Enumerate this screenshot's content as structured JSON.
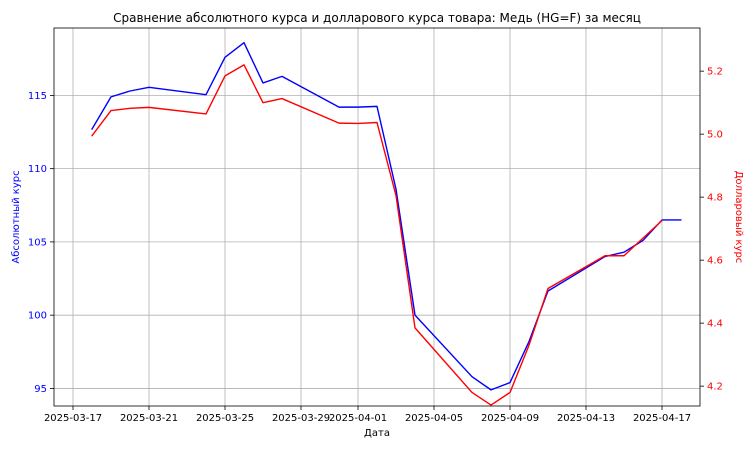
{
  "chart_data": {
    "type": "line",
    "title": "Сравнение абсолютного курса и долларового курса товара: Медь (HG=F) за месяц",
    "xlabel": "Дата",
    "ylabel_left": "Абсолютный курс",
    "ylabel_right": "Долларовый курс",
    "x_ticks": [
      "2025-03-17",
      "2025-03-21",
      "2025-03-25",
      "2025-03-29",
      "2025-04-01",
      "2025-04-05",
      "2025-04-09",
      "2025-04-13",
      "2025-04-17"
    ],
    "y_left_ticks": [
      95,
      100,
      105,
      110,
      115
    ],
    "y_right_ticks": [
      4.2,
      4.4,
      4.6,
      4.8,
      5.0,
      5.2
    ],
    "xlim": [
      "2025-03-16",
      "2025-04-19"
    ],
    "ylim_left": [
      93.8,
      119.6
    ],
    "ylim_right": [
      4.137,
      5.337
    ],
    "grid": true,
    "colors": {
      "left": "#0000ff",
      "right": "#ff0000",
      "grid": "#b0b0b0"
    },
    "series": [
      {
        "axis": "left",
        "color": "#0000ff",
        "points": [
          [
            "2025-03-18",
            112.7
          ],
          [
            "2025-03-19",
            114.9
          ],
          [
            "2025-03-20",
            115.3
          ],
          [
            "2025-03-21",
            115.55
          ],
          [
            "2025-03-24",
            115.05
          ],
          [
            "2025-03-25",
            117.6
          ],
          [
            "2025-03-26",
            118.6
          ],
          [
            "2025-03-27",
            115.85
          ],
          [
            "2025-03-28",
            116.3
          ],
          [
            "2025-03-31",
            114.2
          ],
          [
            "2025-04-01",
            114.2
          ],
          [
            "2025-04-02",
            114.25
          ],
          [
            "2025-04-03",
            108.6
          ],
          [
            "2025-04-04",
            100.0
          ],
          [
            "2025-04-07",
            95.8
          ],
          [
            "2025-04-08",
            94.9
          ],
          [
            "2025-04-09",
            95.4
          ],
          [
            "2025-04-10",
            98.2
          ],
          [
            "2025-04-11",
            101.65
          ],
          [
            "2025-04-14",
            104.0
          ],
          [
            "2025-04-15",
            104.3
          ],
          [
            "2025-04-16",
            105.1
          ],
          [
            "2025-04-17",
            106.5
          ],
          [
            "2025-04-18",
            106.5
          ]
        ]
      },
      {
        "axis": "right",
        "color": "#ff0000",
        "points": [
          [
            "2025-03-18",
            4.995
          ],
          [
            "2025-03-19",
            5.075
          ],
          [
            "2025-03-20",
            5.082
          ],
          [
            "2025-03-21",
            5.085
          ],
          [
            "2025-03-24",
            5.064
          ],
          [
            "2025-03-25",
            5.185
          ],
          [
            "2025-03-26",
            5.22
          ],
          [
            "2025-03-27",
            5.1
          ],
          [
            "2025-03-28",
            5.113
          ],
          [
            "2025-03-31",
            5.035
          ],
          [
            "2025-04-01",
            5.034
          ],
          [
            "2025-04-02",
            5.037
          ],
          [
            "2025-04-03",
            4.805
          ],
          [
            "2025-04-04",
            4.385
          ],
          [
            "2025-04-07",
            4.18
          ],
          [
            "2025-04-08",
            4.14
          ],
          [
            "2025-04-09",
            4.18
          ],
          [
            "2025-04-10",
            4.33
          ],
          [
            "2025-04-11",
            4.51
          ],
          [
            "2025-04-14",
            4.614
          ],
          [
            "2025-04-15",
            4.614
          ],
          [
            "2025-04-16",
            4.67
          ],
          [
            "2025-04-17",
            4.726
          ]
        ]
      }
    ]
  }
}
